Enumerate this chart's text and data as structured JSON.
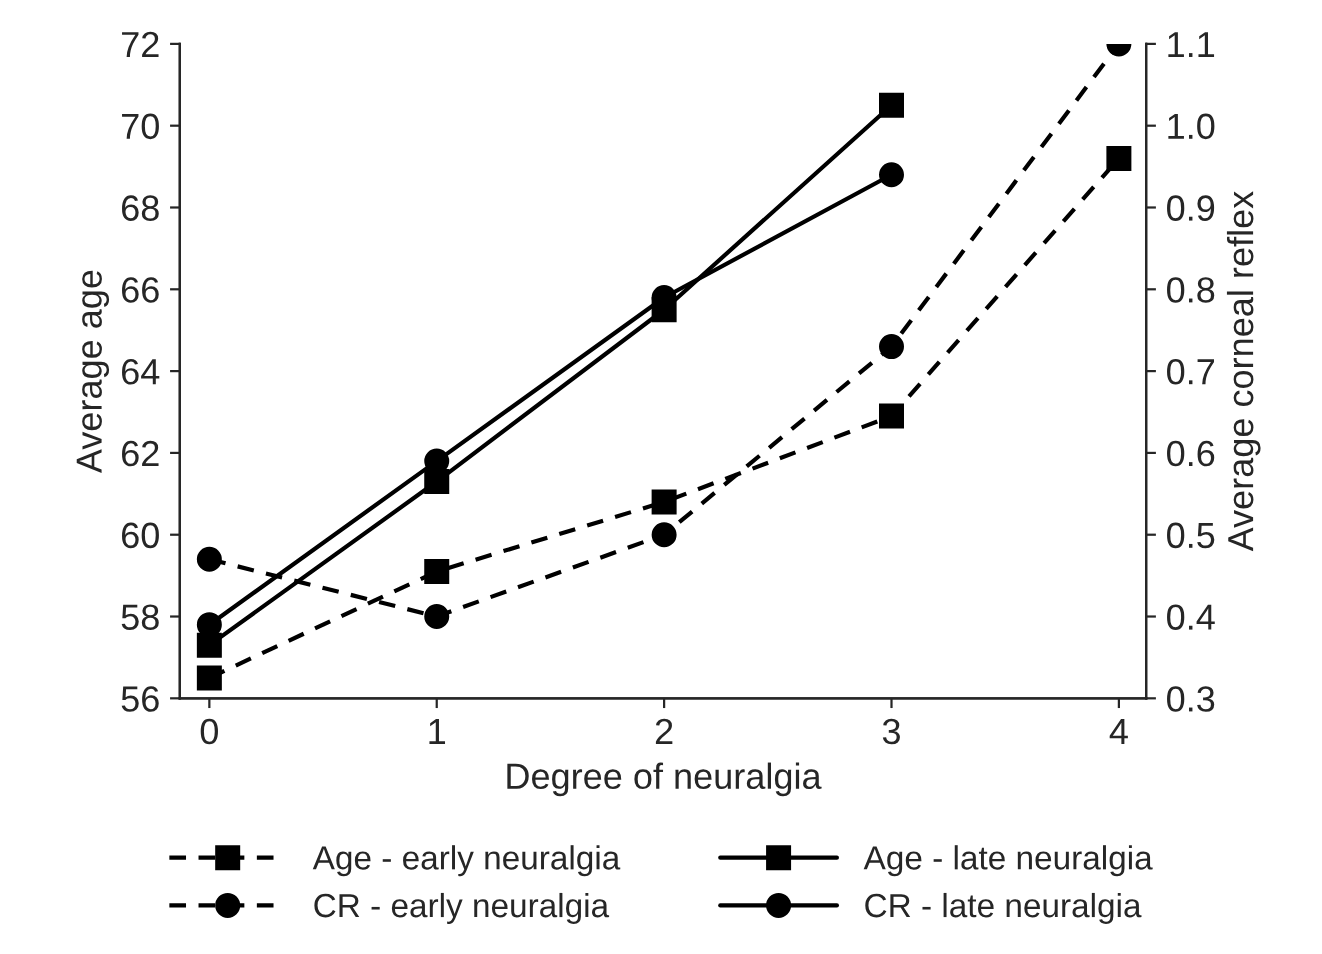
{
  "chart_data": {
    "type": "line",
    "xlabel": "Degree of neuralgia",
    "ylabel": "Average age",
    "y2label": "Average corneal reflex",
    "x": [
      0,
      1,
      2,
      3,
      4
    ],
    "xlim": [
      -0.13,
      4.12
    ],
    "xticks": [
      0,
      1,
      2,
      3,
      4
    ],
    "ylim": [
      56,
      72
    ],
    "yticks": [
      56,
      58,
      60,
      62,
      64,
      66,
      68,
      70,
      72
    ],
    "y2lim": [
      0.3,
      1.1
    ],
    "y2ticks": [
      {
        "value": 0.3,
        "label": "0.3"
      },
      {
        "value": 0.4,
        "label": "0.4"
      },
      {
        "value": 0.5,
        "label": "0.5"
      },
      {
        "value": 0.6,
        "label": "0.6"
      },
      {
        "value": 0.7,
        "label": "0.7"
      },
      {
        "value": 0.8,
        "label": "0.8"
      },
      {
        "value": 0.9,
        "label": "0.9"
      },
      {
        "value": 1.0,
        "label": "1.0"
      },
      {
        "value": 1.1,
        "label": "1.1"
      }
    ],
    "series": [
      {
        "name": "Age - early neuralgia",
        "color": "#000000",
        "marker": "square",
        "line_style": "dashed",
        "values": [
          56.5,
          59.1,
          60.8,
          62.9,
          69.2
        ]
      },
      {
        "name": "CR - early neuralgia",
        "color": "#000000",
        "marker": "circle",
        "line_style": "dashed",
        "axis": "y2",
        "values": [
          0.47,
          0.4,
          0.5,
          0.73,
          1.1
        ]
      },
      {
        "name": "Age - late neuralgia",
        "color": "#000000",
        "marker": "square",
        "line_style": "solid",
        "values": [
          57.3,
          61.3,
          65.5,
          70.5,
          null
        ]
      },
      {
        "name": "CR - late neuralgia",
        "color": "#000000",
        "marker": "circle",
        "line_style": "solid",
        "axis": "y2",
        "values": [
          0.39,
          0.59,
          0.79,
          0.94,
          null
        ]
      }
    ],
    "grid": false,
    "legend": "bottom"
  }
}
